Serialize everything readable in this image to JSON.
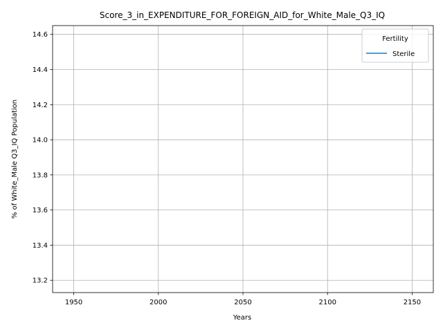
{
  "chart_data": {
    "type": "line",
    "title": "Score_3_in_EXPENDITURE_FOR_FOREIGN_AID_for_White_Male_Q3_IQ",
    "xlabel": "Years",
    "ylabel": "% of White_Male Q3_IQ Population",
    "xlim": [
      1937.5,
      2162.5
    ],
    "ylim": [
      13.13,
      14.65
    ],
    "x_ticks": [
      1950,
      2000,
      2050,
      2100,
      2150
    ],
    "y_ticks": [
      13.2,
      13.4,
      13.6,
      13.8,
      14.0,
      14.2,
      14.4,
      14.6
    ],
    "y_tick_labels": [
      "13.2",
      "13.4",
      "13.6",
      "13.8",
      "14.0",
      "14.2",
      "14.4",
      "14.6"
    ],
    "grid": true,
    "legend": {
      "title": "Fertility",
      "placement": "upper right"
    },
    "series": [
      {
        "name": "Sterile",
        "color": "#1f77b4",
        "x": [],
        "y": []
      }
    ]
  }
}
